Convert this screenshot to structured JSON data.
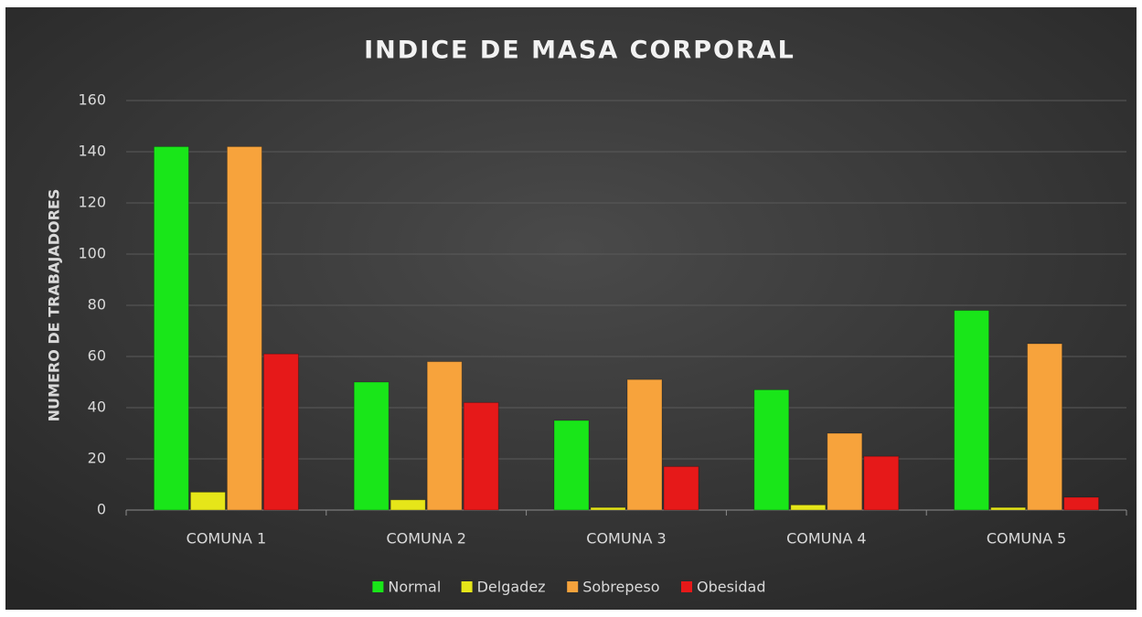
{
  "chart_data": {
    "type": "bar",
    "title": "INDICE DE MASA CORPORAL",
    "y_label": "NUMERO DE TRABAJADORES",
    "categories": [
      "COMUNA 1",
      "COMUNA 2",
      "COMUNA 3",
      "COMUNA 4",
      "COMUNA 5"
    ],
    "series": [
      {
        "name": "Normal",
        "color": "#19e619",
        "values": [
          142,
          50,
          35,
          47,
          78
        ]
      },
      {
        "name": "Delgadez",
        "color": "#e6e619",
        "values": [
          7,
          4,
          1,
          2,
          1
        ]
      },
      {
        "name": "Sobrepeso",
        "color": "#f7a33c",
        "values": [
          142,
          58,
          51,
          30,
          65
        ]
      },
      {
        "name": "Obesidad",
        "color": "#e61919",
        "values": [
          61,
          42,
          17,
          21,
          5
        ]
      }
    ],
    "ylim": [
      0,
      160
    ],
    "yticks": [
      0,
      20,
      40,
      60,
      80,
      100,
      120,
      140,
      160
    ],
    "grid": true,
    "legend": "bottom"
  }
}
